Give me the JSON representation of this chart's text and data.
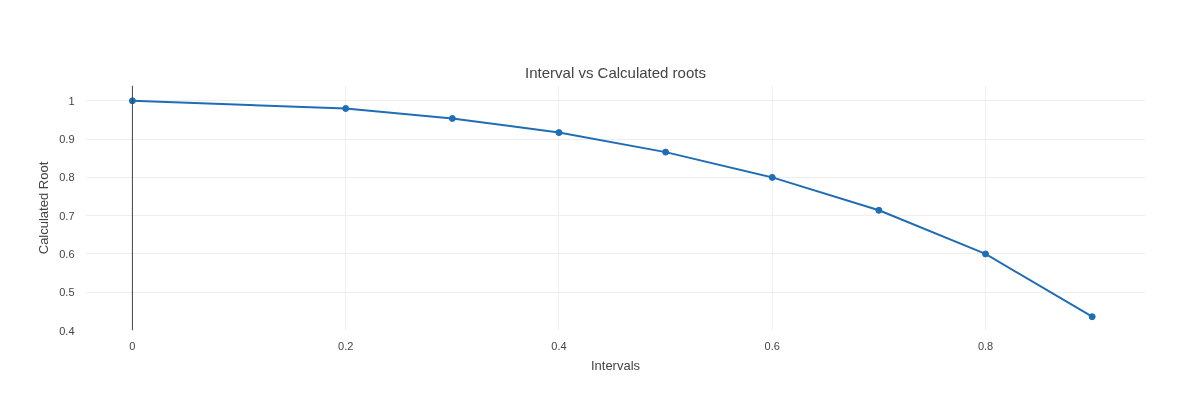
{
  "chart_data": {
    "type": "line",
    "title": "Interval vs Calculated roots",
    "xlabel": "Intervals",
    "ylabel": "Calculated Root",
    "x": [
      0,
      0.2,
      0.3,
      0.4,
      0.5,
      0.6,
      0.7,
      0.8,
      0.9
    ],
    "series": [
      {
        "color": "#1f6db5",
        "values": [
          1.0,
          0.98,
          0.954,
          0.917,
          0.866,
          0.8,
          0.714,
          0.6,
          0.436
        ]
      }
    ],
    "xlim": [
      -0.044,
      0.95
    ],
    "ylim": [
      0.4,
      1.04
    ],
    "xticks": [
      0,
      0.2,
      0.4,
      0.6,
      0.8
    ],
    "yticks": [
      0.4,
      0.5,
      0.6,
      0.7,
      0.8,
      0.9,
      1
    ],
    "grid": true,
    "marker": "circle",
    "line_style": "solid",
    "ref_lines": [
      {
        "axis": "x",
        "value": 0,
        "color": "#444444"
      }
    ]
  }
}
